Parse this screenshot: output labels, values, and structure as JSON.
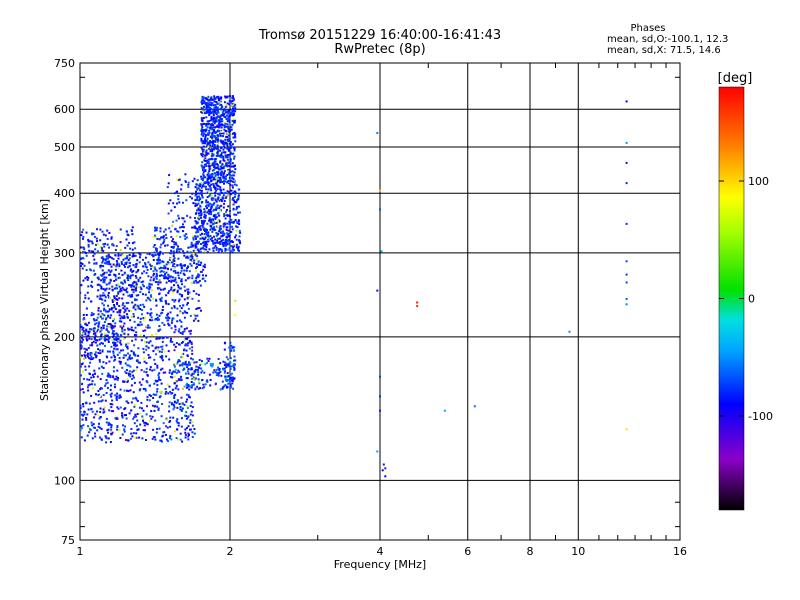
{
  "chart_data": {
    "type": "scatter",
    "title": "Tromsø 20151229 16:40:00-16:41:43",
    "subtitle": "RwPretec (8p)",
    "xlabel": "Frequency [MHz]",
    "ylabel": "Stationary phase Virtual Height [km]",
    "x_scale": "log",
    "y_scale": "log",
    "xlim": [
      1,
      16
    ],
    "ylim": [
      75,
      750
    ],
    "x_ticks": [
      1,
      2,
      4,
      6,
      8,
      10,
      16
    ],
    "x_tick_labels": [
      "1",
      "2",
      "4",
      "6",
      "8",
      "10",
      "16"
    ],
    "y_ticks": [
      75,
      100,
      200,
      300,
      400,
      500,
      600,
      750
    ],
    "y_tick_labels": [
      "75",
      "100",
      "200",
      "300",
      "400",
      "500",
      "600",
      "750"
    ],
    "grid": true,
    "stats": {
      "heading": "Phases",
      "line_o": "mean, sd,O:-100.1, 12.3",
      "line_x": "mean, sd,X:  71.5, 14.6"
    },
    "colorbar": {
      "label": "[deg]",
      "range": [
        -180,
        180
      ],
      "ticks": [
        100,
        0,
        -100
      ],
      "tick_labels": [
        "100",
        "0",
        "-100"
      ]
    },
    "series": [
      {
        "points": [
          [
            4.0,
            140
          ],
          [
            4.0,
            150
          ],
          [
            4.0,
            165
          ],
          [
            5.4,
            140
          ],
          [
            9.6,
            205
          ],
          [
            6.2,
            143
          ],
          [
            4.05,
            105
          ],
          [
            4.07,
            108
          ],
          [
            4.1,
            102
          ],
          [
            4.1,
            106
          ],
          [
            3.95,
            115
          ],
          [
            4.03,
            302
          ],
          [
            4.0,
            370
          ],
          [
            3.95,
            535
          ],
          [
            3.95,
            250
          ]
        ],
        "phases": [
          -100,
          -95,
          -90,
          -60,
          -70,
          -80,
          -110,
          -105,
          -112,
          -100,
          -60,
          -60,
          -85,
          -70,
          -105
        ]
      },
      {
        "points": [
          [
            12.5,
            623
          ],
          [
            12.5,
            463
          ],
          [
            12.5,
            420
          ],
          [
            12.5,
            345
          ],
          [
            12.5,
            288
          ],
          [
            12.5,
            270
          ],
          [
            12.5,
            260
          ],
          [
            12.5,
            240
          ],
          [
            12.5,
            234
          ],
          [
            12.5,
            510
          ],
          [
            12.5,
            128
          ],
          [
            4.75,
            232
          ],
          [
            4.75,
            236
          ],
          [
            4.0,
            405
          ],
          [
            2.05,
            238
          ],
          [
            2.05,
            222
          ]
        ],
        "phases": [
          -110,
          -105,
          -100,
          -95,
          -90,
          -95,
          -90,
          -80,
          -70,
          -65,
          110,
          170,
          175,
          120,
          60,
          100
        ]
      }
    ],
    "cloud_regions": [
      {
        "x": [
          1.0,
          1.7
        ],
        "y": [
          120,
          215
        ],
        "n": 850,
        "phase_mean": -102,
        "phase_sd": 18
      },
      {
        "x": [
          1.0,
          1.3
        ],
        "y": [
          180,
          340
        ],
        "n": 380,
        "phase_mean": -102,
        "phase_sd": 18
      },
      {
        "x": [
          1.1,
          1.75
        ],
        "y": [
          215,
          300
        ],
        "n": 500,
        "phase_mean": -100,
        "phase_sd": 15
      },
      {
        "x": [
          1.4,
          1.8
        ],
        "y": [
          260,
          340
        ],
        "n": 220,
        "phase_mean": -100,
        "phase_sd": 15
      },
      {
        "x": [
          1.5,
          1.75
        ],
        "y": [
          340,
          440
        ],
        "n": 60,
        "phase_mean": -100,
        "phase_sd": 15
      },
      {
        "x": [
          1.7,
          2.1
        ],
        "y": [
          300,
          420
        ],
        "n": 520,
        "phase_mean": -100,
        "phase_sd": 14
      },
      {
        "x": [
          1.75,
          2.05
        ],
        "y": [
          420,
          640
        ],
        "n": 780,
        "phase_mean": -100,
        "phase_sd": 12
      },
      {
        "x": [
          1.55,
          2.05
        ],
        "y": [
          155,
          180
        ],
        "n": 160,
        "phase_mean": -95,
        "phase_sd": 25
      },
      {
        "x": [
          1.95,
          2.05
        ],
        "y": [
          160,
          195
        ],
        "n": 60,
        "phase_mean": -90,
        "phase_sd": 20
      }
    ]
  }
}
